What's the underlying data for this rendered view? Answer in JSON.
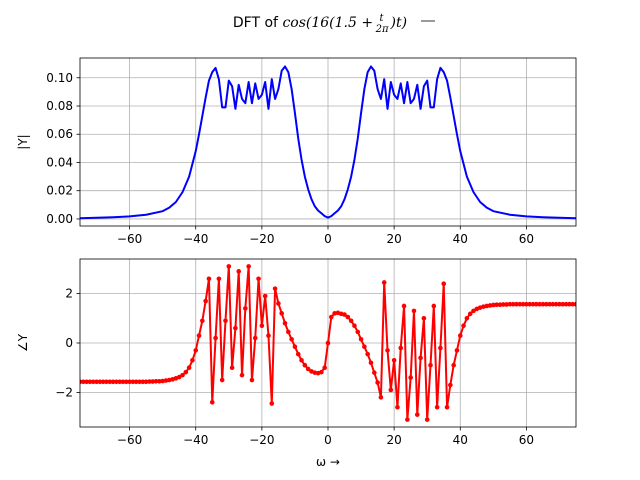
{
  "figure": {
    "title_prefix": "DFT of ",
    "title_math_1": "cos(16(1.5 + ",
    "title_frac_num": "t",
    "title_frac_den": "2π",
    "title_math_2": ")t)"
  },
  "chart_data": [
    {
      "type": "line",
      "title": "",
      "xlabel": "",
      "ylabel": "|Y|",
      "xlim": [
        -75,
        75
      ],
      "ylim": [
        -0.005,
        0.114
      ],
      "xticks": [
        -60,
        -40,
        -20,
        0,
        20,
        40,
        60
      ],
      "xtick_labels": [
        "−60",
        "−40",
        "−20",
        "0",
        "20",
        "40",
        "60"
      ],
      "yticks": [
        0.0,
        0.02,
        0.04,
        0.06,
        0.08,
        0.1
      ],
      "ytick_labels": [
        "0.00",
        "0.02",
        "0.04",
        "0.06",
        "0.08",
        "0.10"
      ],
      "grid": true,
      "color": "#0000ff",
      "markers": false,
      "x": [
        -75,
        -70,
        -65,
        -60,
        -55,
        -50,
        -48,
        -46,
        -44,
        -42,
        -40,
        -39,
        -38,
        -37,
        -36,
        -35,
        -34,
        -33,
        -32,
        -31,
        -30,
        -29,
        -28,
        -27,
        -26,
        -25,
        -24,
        -23,
        -22,
        -21,
        -20,
        -19,
        -18,
        -17,
        -16,
        -15,
        -14,
        -13,
        -12,
        -11,
        -10,
        -9,
        -8,
        -7,
        -6,
        -5,
        -4,
        -3,
        -2,
        -1,
        0,
        1,
        2,
        3,
        4,
        5,
        6,
        7,
        8,
        9,
        10,
        11,
        12,
        13,
        14,
        15,
        16,
        17,
        18,
        19,
        20,
        21,
        22,
        23,
        24,
        25,
        26,
        27,
        28,
        29,
        30,
        31,
        32,
        33,
        34,
        35,
        36,
        37,
        38,
        39,
        40,
        42,
        44,
        46,
        48,
        50,
        55,
        60,
        65,
        70,
        75
      ],
      "y": [
        0.0005,
        0.0008,
        0.0012,
        0.0018,
        0.003,
        0.0055,
        0.008,
        0.012,
        0.019,
        0.03,
        0.048,
        0.06,
        0.073,
        0.086,
        0.098,
        0.104,
        0.107,
        0.099,
        0.079,
        0.079,
        0.098,
        0.094,
        0.078,
        0.095,
        0.085,
        0.082,
        0.097,
        0.082,
        0.096,
        0.085,
        0.088,
        0.097,
        0.078,
        0.099,
        0.085,
        0.092,
        0.105,
        0.108,
        0.104,
        0.092,
        0.075,
        0.057,
        0.042,
        0.03,
        0.021,
        0.014,
        0.009,
        0.006,
        0.004,
        0.002,
        0.001,
        0.002,
        0.004,
        0.006,
        0.009,
        0.014,
        0.021,
        0.03,
        0.042,
        0.057,
        0.075,
        0.092,
        0.104,
        0.108,
        0.105,
        0.092,
        0.085,
        0.099,
        0.078,
        0.097,
        0.088,
        0.085,
        0.096,
        0.082,
        0.097,
        0.082,
        0.085,
        0.095,
        0.078,
        0.094,
        0.098,
        0.079,
        0.079,
        0.099,
        0.107,
        0.104,
        0.098,
        0.086,
        0.073,
        0.06,
        0.048,
        0.03,
        0.019,
        0.012,
        0.008,
        0.0055,
        0.003,
        0.0018,
        0.0012,
        0.0008,
        0.0005
      ]
    },
    {
      "type": "line",
      "title": "",
      "xlabel": "ω →",
      "ylabel": "∠Y",
      "xlim": [
        -75,
        75
      ],
      "ylim": [
        -3.4,
        3.4
      ],
      "xticks": [
        -60,
        -40,
        -20,
        0,
        20,
        40,
        60
      ],
      "xtick_labels": [
        "−60",
        "−40",
        "−20",
        "0",
        "20",
        "40",
        "60"
      ],
      "yticks": [
        -2,
        0,
        2
      ],
      "ytick_labels": [
        "−2",
        "0",
        "2"
      ],
      "grid": true,
      "color": "#ff0000",
      "markers": true,
      "x": [
        -75,
        -74,
        -73,
        -72,
        -71,
        -70,
        -69,
        -68,
        -67,
        -66,
        -65,
        -64,
        -63,
        -62,
        -61,
        -60,
        -59,
        -58,
        -57,
        -56,
        -55,
        -54,
        -53,
        -52,
        -51,
        -50,
        -49,
        -48,
        -47,
        -46,
        -45,
        -44,
        -43,
        -42,
        -41,
        -40,
        -39,
        -38,
        -37,
        -36,
        -35,
        -34,
        -33,
        -32,
        -31,
        -30,
        -29,
        -28,
        -27,
        -26,
        -25,
        -24,
        -23,
        -22,
        -21,
        -20,
        -19,
        -18,
        -17,
        -16,
        -15,
        -14,
        -13,
        -12,
        -11,
        -10,
        -9,
        -8,
        -7,
        -6,
        -5,
        -4,
        -3,
        -2,
        -1,
        0,
        1,
        2,
        3,
        4,
        5,
        6,
        7,
        8,
        9,
        10,
        11,
        12,
        13,
        14,
        15,
        16,
        17,
        18,
        19,
        20,
        21,
        22,
        23,
        24,
        25,
        26,
        27,
        28,
        29,
        30,
        31,
        32,
        33,
        34,
        35,
        36,
        37,
        38,
        39,
        40,
        41,
        42,
        43,
        44,
        45,
        46,
        47,
        48,
        49,
        50,
        51,
        52,
        53,
        54,
        55,
        56,
        57,
        58,
        59,
        60,
        61,
        62,
        63,
        64,
        65,
        66,
        67,
        68,
        69,
        70,
        71,
        72,
        73,
        74,
        75
      ],
      "y": [
        -1.57,
        -1.57,
        -1.57,
        -1.57,
        -1.57,
        -1.57,
        -1.57,
        -1.57,
        -1.57,
        -1.57,
        -1.57,
        -1.57,
        -1.57,
        -1.57,
        -1.57,
        -1.57,
        -1.57,
        -1.57,
        -1.57,
        -1.57,
        -1.57,
        -1.56,
        -1.56,
        -1.55,
        -1.55,
        -1.54,
        -1.52,
        -1.5,
        -1.47,
        -1.43,
        -1.38,
        -1.3,
        -1.18,
        -1.0,
        -0.7,
        -0.3,
        0.3,
        0.9,
        1.7,
        2.6,
        -2.4,
        0.2,
        2.6,
        -1.5,
        0.9,
        3.1,
        -1.0,
        0.6,
        2.9,
        -1.3,
        1.4,
        3.1,
        -1.5,
        0.2,
        2.6,
        0.7,
        1.9,
        0.3,
        -2.45,
        2.2,
        1.6,
        1.2,
        0.8,
        0.45,
        0.15,
        -0.15,
        -0.45,
        -0.7,
        -0.9,
        -1.05,
        -1.15,
        -1.2,
        -1.22,
        -1.18,
        -1.0,
        0.0,
        1.05,
        1.2,
        1.22,
        1.18,
        1.15,
        1.05,
        0.9,
        0.7,
        0.45,
        0.15,
        -0.15,
        -0.45,
        -0.8,
        -1.2,
        -1.6,
        -2.2,
        2.45,
        -0.3,
        -1.9,
        -0.7,
        -2.6,
        -0.2,
        1.5,
        -3.1,
        -1.4,
        1.3,
        -2.9,
        -0.6,
        1.0,
        -3.1,
        -0.9,
        1.5,
        -2.6,
        -0.2,
        2.4,
        -2.6,
        -1.7,
        -0.9,
        -0.3,
        0.3,
        0.7,
        1.0,
        1.18,
        1.3,
        1.38,
        1.43,
        1.47,
        1.5,
        1.52,
        1.54,
        1.55,
        1.55,
        1.56,
        1.56,
        1.57,
        1.57,
        1.57,
        1.57,
        1.57,
        1.57,
        1.57,
        1.57,
        1.57,
        1.57,
        1.57,
        1.57,
        1.57,
        1.57,
        1.57,
        1.57,
        1.57,
        1.57,
        1.57,
        1.57,
        1.57
      ]
    }
  ]
}
